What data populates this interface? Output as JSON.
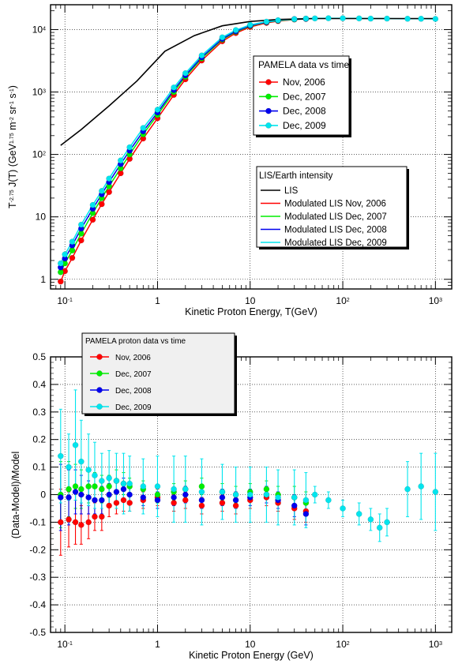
{
  "chart_data": [
    {
      "type": "scatter",
      "xlabel": "Kinetic Proton Energy, T(GeV)",
      "ylabel_parts": [
        "T",
        "-2.75",
        " J(T) (GeV",
        "1.75",
        " m",
        "-2",
        " sr",
        "-1",
        " s",
        "-1",
        ")"
      ],
      "x_scale": "log",
      "y_scale": "log",
      "xlim": [
        0.07,
        1500
      ],
      "ylim": [
        0.7,
        25000
      ],
      "grid": true,
      "xticks": [
        {
          "v": 0.1,
          "base": "10",
          "exp": "-1"
        },
        {
          "v": 1,
          "base": "1",
          "exp": ""
        },
        {
          "v": 10,
          "base": "10",
          "exp": ""
        },
        {
          "v": 100,
          "base": "10",
          "exp": "2"
        },
        {
          "v": 1000,
          "base": "10",
          "exp": "3"
        }
      ],
      "yticks": [
        {
          "v": 1,
          "base": "1",
          "exp": ""
        },
        {
          "v": 10,
          "base": "10",
          "exp": ""
        },
        {
          "v": 100,
          "base": "10",
          "exp": "2"
        },
        {
          "v": 1000,
          "base": "10",
          "exp": "3"
        },
        {
          "v": 10000,
          "base": "10",
          "exp": "4"
        }
      ],
      "legend_data": {
        "title": "PAMELA data vs time",
        "placement": "center-right",
        "entries": [
          {
            "label": "Nov, 2006",
            "color": "#ff0000"
          },
          {
            "label": "Dec, 2007",
            "color": "#00ee00"
          },
          {
            "label": "Dec, 2008",
            "color": "#0000ee"
          },
          {
            "label": "Dec, 2009",
            "color": "#00e5ee"
          }
        ]
      },
      "legend_models": {
        "title": "LIS/Earth intensity",
        "placement": "lower-right",
        "entries": [
          {
            "label": "LIS",
            "color": "#000000"
          },
          {
            "label": "Modulated LIS Nov, 2006",
            "color": "#ff0000"
          },
          {
            "label": "Modulated LIS Dec, 2007",
            "color": "#00ee00"
          },
          {
            "label": "Modulated LIS Dec, 2008",
            "color": "#0000ee"
          },
          {
            "label": "Modulated LIS Dec, 2009",
            "color": "#00e5ee"
          }
        ]
      },
      "lis_curve": {
        "x": [
          0.09,
          0.15,
          0.3,
          0.6,
          1.2,
          2.5,
          5,
          10,
          20,
          50,
          100,
          300,
          1000
        ],
        "y": [
          140,
          250,
          600,
          1500,
          4500,
          8000,
          11500,
          13500,
          14500,
          15000,
          15000,
          15000,
          15000
        ]
      },
      "series": [
        {
          "name": "Nov, 2006",
          "color": "#ff0000",
          "x": [
            0.09,
            0.1,
            0.12,
            0.15,
            0.2,
            0.25,
            0.3,
            0.4,
            0.5,
            0.7,
            1.0,
            1.5,
            2,
            3,
            5,
            7,
            10,
            15,
            20,
            30,
            40
          ],
          "y": [
            0.92,
            1.35,
            2.2,
            4.2,
            9,
            16,
            25,
            50,
            85,
            180,
            380,
            900,
            1600,
            3200,
            6500,
            8800,
            11000,
            12800,
            13700,
            14500,
            14800
          ]
        },
        {
          "name": "Dec, 2007",
          "color": "#00ee00",
          "x": [
            0.09,
            0.1,
            0.12,
            0.15,
            0.2,
            0.25,
            0.3,
            0.4,
            0.5,
            0.7,
            1.0,
            1.5,
            2,
            3,
            5,
            7,
            10,
            15,
            20,
            30,
            40
          ],
          "y": [
            1.3,
            1.8,
            2.9,
            5.4,
            11.5,
            20,
            31,
            60,
            100,
            210,
            430,
            1000,
            1750,
            3450,
            6900,
            9200,
            11400,
            13100,
            13900,
            14600,
            14900
          ]
        },
        {
          "name": "Dec, 2008",
          "color": "#0000ee",
          "x": [
            0.09,
            0.1,
            0.12,
            0.15,
            0.2,
            0.25,
            0.3,
            0.4,
            0.5,
            0.7,
            1.0,
            1.5,
            2,
            3,
            5,
            7,
            10,
            15,
            20,
            30,
            40
          ],
          "y": [
            1.55,
            2.15,
            3.5,
            6.5,
            13.5,
            23,
            36,
            70,
            115,
            235,
            470,
            1080,
            1850,
            3600,
            7100,
            9400,
            11600,
            13200,
            14000,
            14700,
            14900
          ]
        },
        {
          "name": "Dec, 2009",
          "color": "#00e5ee",
          "x": [
            0.09,
            0.1,
            0.12,
            0.15,
            0.2,
            0.25,
            0.3,
            0.4,
            0.5,
            0.7,
            1.0,
            1.5,
            2,
            3,
            5,
            7,
            10,
            15,
            20,
            30,
            40,
            50,
            70,
            100,
            150,
            200,
            300,
            500,
            700,
            1000
          ],
          "y": [
            1.8,
            2.5,
            4.0,
            7.5,
            15.5,
            26,
            41,
            80,
            130,
            265,
            520,
            1180,
            2000,
            3850,
            7500,
            9800,
            11900,
            13400,
            14100,
            14700,
            15000,
            15100,
            15200,
            15200,
            15100,
            15000,
            15000,
            14900,
            14900,
            14800
          ]
        }
      ]
    },
    {
      "type": "scatter",
      "xlabel": "Kinetic Proton Energy (GeV)",
      "ylabel": "(Data-Model)/Model",
      "x_scale": "log",
      "y_scale": "linear",
      "xlim": [
        0.07,
        1500
      ],
      "ylim": [
        -0.5,
        0.5
      ],
      "grid": true,
      "xticks": [
        {
          "v": 0.1,
          "base": "10",
          "exp": "-1"
        },
        {
          "v": 1,
          "base": "1",
          "exp": ""
        },
        {
          "v": 10,
          "base": "10",
          "exp": ""
        },
        {
          "v": 100,
          "base": "10",
          "exp": "2"
        },
        {
          "v": 1000,
          "base": "10",
          "exp": "3"
        }
      ],
      "yticks": [
        {
          "v": -0.5,
          "label": "-0.5"
        },
        {
          "v": -0.4,
          "label": "-0.4"
        },
        {
          "v": -0.3,
          "label": "-0.3"
        },
        {
          "v": -0.2,
          "label": "-0.2"
        },
        {
          "v": -0.1,
          "label": "-0.1"
        },
        {
          "v": 0,
          "label": "0"
        },
        {
          "v": 0.1,
          "label": "0.1"
        },
        {
          "v": 0.2,
          "label": "0.2"
        },
        {
          "v": 0.3,
          "label": "0.3"
        },
        {
          "v": 0.4,
          "label": "0.4"
        },
        {
          "v": 0.5,
          "label": "0.5"
        }
      ],
      "legend": {
        "title": "PAMELA proton data vs time",
        "placement": "top-left",
        "entries": [
          {
            "label": "Nov, 2006",
            "color": "#ff0000"
          },
          {
            "label": "Dec, 2007",
            "color": "#00ee00"
          },
          {
            "label": "Dec, 2008",
            "color": "#0000ee"
          },
          {
            "label": "Dec, 2009",
            "color": "#00e5ee"
          }
        ]
      },
      "series": [
        {
          "name": "Nov, 2006",
          "color": "#ff0000",
          "x": [
            0.09,
            0.11,
            0.13,
            0.15,
            0.18,
            0.21,
            0.25,
            0.3,
            0.36,
            0.43,
            0.5,
            0.7,
            1.0,
            1.5,
            2,
            3,
            5,
            7,
            10,
            15,
            20,
            30,
            40
          ],
          "y": [
            -0.1,
            -0.09,
            -0.1,
            -0.11,
            -0.1,
            -0.08,
            -0.08,
            -0.04,
            -0.03,
            -0.02,
            -0.03,
            -0.02,
            -0.01,
            -0.03,
            -0.02,
            -0.04,
            -0.03,
            -0.04,
            -0.02,
            -0.01,
            -0.03,
            -0.05,
            -0.06
          ],
          "err": [
            0.12,
            0.1,
            0.08,
            0.07,
            0.06,
            0.05,
            0.05,
            0.04,
            0.04,
            0.04,
            0.03,
            0.03,
            0.03,
            0.03,
            0.03,
            0.03,
            0.03,
            0.03,
            0.03,
            0.03,
            0.03,
            0.04,
            0.04
          ]
        },
        {
          "name": "Dec, 2007",
          "color": "#00ee00",
          "x": [
            0.09,
            0.11,
            0.13,
            0.15,
            0.18,
            0.21,
            0.25,
            0.3,
            0.36,
            0.43,
            0.5,
            0.7,
            1.0,
            1.5,
            2,
            3,
            5,
            7,
            10,
            15,
            20,
            30,
            40
          ],
          "y": [
            0.0,
            0.02,
            0.03,
            0.02,
            0.03,
            0.03,
            0.02,
            0.03,
            0.05,
            0.04,
            0.03,
            0.02,
            0.0,
            0.01,
            0.02,
            0.03,
            0.01,
            0.0,
            0.01,
            0.02,
            0.0,
            -0.01,
            -0.03
          ],
          "err": [
            0.12,
            0.1,
            0.08,
            0.07,
            0.06,
            0.05,
            0.05,
            0.04,
            0.04,
            0.04,
            0.03,
            0.03,
            0.03,
            0.03,
            0.03,
            0.03,
            0.03,
            0.03,
            0.03,
            0.03,
            0.03,
            0.04,
            0.04
          ]
        },
        {
          "name": "Dec, 2008",
          "color": "#0000ee",
          "x": [
            0.09,
            0.11,
            0.13,
            0.15,
            0.18,
            0.21,
            0.25,
            0.3,
            0.36,
            0.43,
            0.5,
            0.7,
            1.0,
            1.5,
            2,
            3,
            5,
            7,
            10,
            15,
            20,
            30,
            40
          ],
          "y": [
            -0.01,
            -0.01,
            0.01,
            0.0,
            -0.01,
            -0.02,
            -0.02,
            0.0,
            0.01,
            0.02,
            0.0,
            -0.01,
            -0.02,
            -0.01,
            0.0,
            -0.02,
            -0.01,
            -0.02,
            -0.01,
            0.0,
            -0.02,
            -0.04,
            -0.07
          ],
          "err": [
            0.12,
            0.1,
            0.08,
            0.07,
            0.06,
            0.05,
            0.05,
            0.04,
            0.04,
            0.04,
            0.03,
            0.03,
            0.03,
            0.03,
            0.03,
            0.03,
            0.03,
            0.03,
            0.03,
            0.03,
            0.03,
            0.04,
            0.04
          ]
        },
        {
          "name": "Dec, 2009",
          "color": "#00e5ee",
          "x": [
            0.09,
            0.11,
            0.13,
            0.15,
            0.18,
            0.21,
            0.25,
            0.3,
            0.36,
            0.43,
            0.5,
            0.7,
            1.0,
            1.5,
            2,
            3,
            5,
            7,
            10,
            15,
            20,
            30,
            40,
            50,
            70,
            100,
            150,
            200,
            250,
            300,
            500,
            700,
            1000
          ],
          "y": [
            0.14,
            0.1,
            0.18,
            0.12,
            0.09,
            0.07,
            0.05,
            0.06,
            0.05,
            0.04,
            0.04,
            0.03,
            0.03,
            0.02,
            0.02,
            0.01,
            0.01,
            0.0,
            0.0,
            0.0,
            -0.01,
            -0.01,
            -0.02,
            0.0,
            -0.02,
            -0.05,
            -0.07,
            -0.09,
            -0.12,
            -0.1,
            0.02,
            0.03,
            0.01
          ],
          "err": [
            0.17,
            0.12,
            0.2,
            0.15,
            0.13,
            0.12,
            0.1,
            0.1,
            0.1,
            0.11,
            0.1,
            0.1,
            0.11,
            0.12,
            0.12,
            0.12,
            0.1,
            0.1,
            0.1,
            0.1,
            0.1,
            0.1,
            0.1,
            0.03,
            0.03,
            0.03,
            0.04,
            0.04,
            0.05,
            0.05,
            0.1,
            0.12,
            0.14
          ]
        }
      ]
    }
  ]
}
